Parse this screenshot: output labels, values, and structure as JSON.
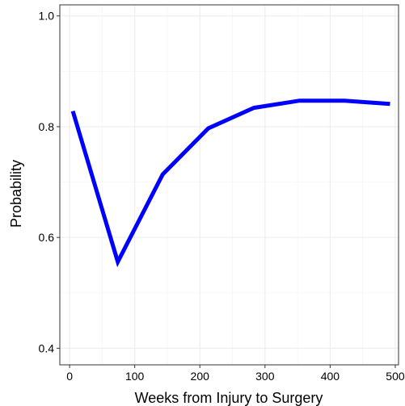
{
  "chart_data": {
    "type": "line",
    "title": "",
    "xlabel": "Weeks from Injury to Surgery",
    "ylabel": "Probability",
    "xlim": [
      -15,
      505
    ],
    "ylim": [
      0.37,
      1.02
    ],
    "x_ticks": [
      0,
      100,
      200,
      300,
      400,
      500
    ],
    "y_ticks": [
      0.4,
      0.6,
      0.8,
      1.0
    ],
    "x_tick_labels": [
      "0",
      "100",
      "200",
      "300",
      "400",
      "500"
    ],
    "y_tick_labels": [
      "0.4",
      "0.6",
      "0.8",
      "1.0"
    ],
    "grid": true,
    "legend": "none",
    "series": [
      {
        "color": "#0000ff",
        "x": [
          5,
          74,
          143,
          213,
          283,
          353,
          422,
          492
        ],
        "y": [
          0.828,
          0.556,
          0.714,
          0.797,
          0.834,
          0.847,
          0.847,
          0.841
        ]
      }
    ]
  }
}
